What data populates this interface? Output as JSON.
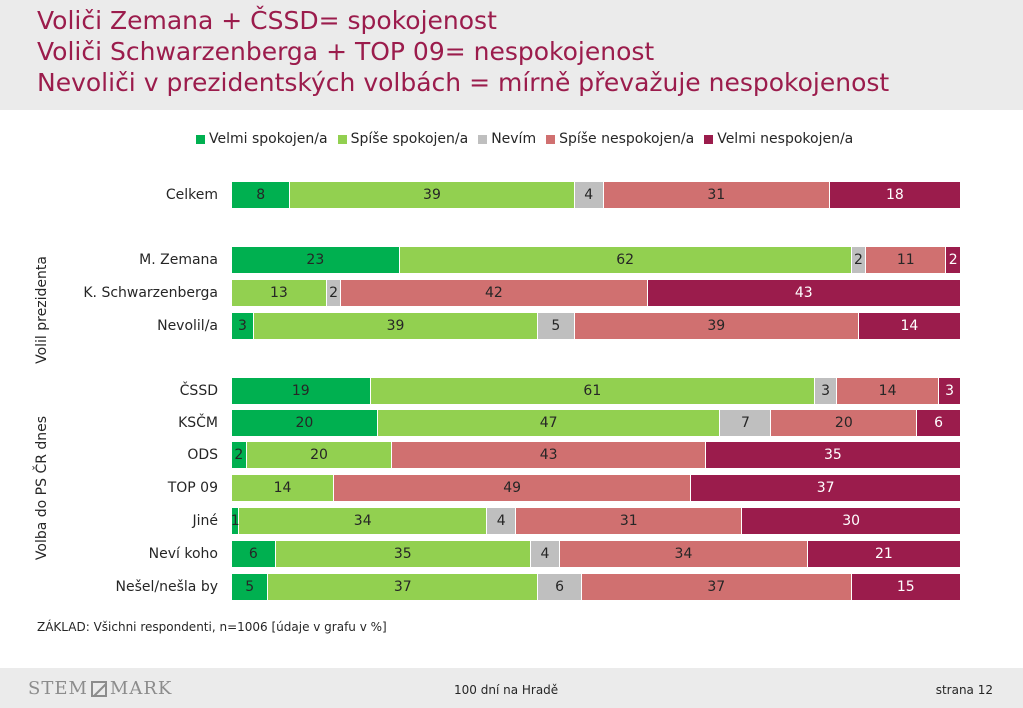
{
  "header": {
    "line1": "Voliči Zemana + ČSSD= spokojenost",
    "line2": "Voliči Schwarzenberga + TOP 09= nespokojenost",
    "line3": "Nevoliči v prezidentských volbách = mírně převažuje nespokojenost"
  },
  "colors": {
    "header_bg": "#ebebeb",
    "title": "#9b1c4c",
    "velmi_spokojen": "#00b050",
    "spise_spokojen": "#92d050",
    "nevim": "#bfbfbf",
    "spise_nespokojen": "#d07070",
    "velmi_nespokojen": "#9b1c4c"
  },
  "group_labels": {
    "prezident": "Volil prezidenta",
    "ps": "Volba do  PS ČR dnes"
  },
  "chart_data": {
    "type": "bar",
    "orientation": "horizontal",
    "stacked": true,
    "percent_stacked": true,
    "legend_position": "top",
    "categories": [
      "Celkem",
      "M. Zemana",
      "K. Schwarzenberga",
      "Nevolil/a",
      "ČSSD",
      "KSČM",
      "ODS",
      "TOP 09",
      "Jiné",
      "Neví koho",
      "Nešel/nešla by"
    ],
    "series": [
      {
        "name": "Velmi spokojen/a",
        "values": [
          8,
          23,
          0,
          3,
          19,
          20,
          2,
          0,
          1,
          6,
          5
        ]
      },
      {
        "name": "Spíše spokojen/a",
        "values": [
          39,
          62,
          13,
          39,
          61,
          47,
          20,
          14,
          34,
          35,
          37
        ]
      },
      {
        "name": "Nevím",
        "values": [
          4,
          2,
          2,
          5,
          3,
          7,
          0,
          0,
          4,
          4,
          6
        ]
      },
      {
        "name": "Spíše nespokojen/a",
        "values": [
          31,
          11,
          42,
          39,
          14,
          20,
          43,
          49,
          31,
          34,
          37
        ]
      },
      {
        "name": "Velmi nespokojen/a",
        "values": [
          18,
          2,
          43,
          14,
          3,
          6,
          35,
          37,
          30,
          21,
          15
        ]
      }
    ],
    "xlim": [
      0,
      100
    ]
  },
  "base_note": "ZÁKLAD: Všichni respondenti, n=1006 [údaje v grafu v %]",
  "footer": {
    "brand_left": "STEM",
    "brand_right": "MARK",
    "center": "100 dní na Hradě",
    "page": "strana 12"
  }
}
